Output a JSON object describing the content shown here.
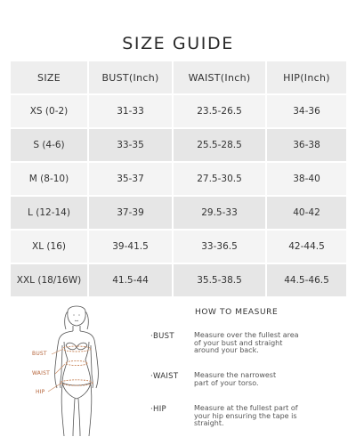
{
  "title": "SIZE GUIDE",
  "table": {
    "headers": [
      "SIZE",
      "BUST(Inch)",
      "WAIST(Inch)",
      "HIP(Inch)"
    ],
    "rows": [
      [
        "XS (0-2)",
        "31-33",
        "23.5-26.5",
        "34-36"
      ],
      [
        "S (4-6)",
        "33-35",
        "25.5-28.5",
        "36-38"
      ],
      [
        "M (8-10)",
        "35-37",
        "27.5-30.5",
        "38-40"
      ],
      [
        "L (12-14)",
        "37-39",
        "29.5-33",
        "40-42"
      ],
      [
        "XL (16)",
        "39-41.5",
        "33-36.5",
        "42-44.5"
      ],
      [
        "XXL (18/16W)",
        "41.5-44",
        "35.5-38.5",
        "44.5-46.5"
      ]
    ]
  },
  "figure": {
    "labels": [
      "BUST",
      "WAIST",
      "HIP"
    ],
    "accent": "#c8855a"
  },
  "how_to_measure": {
    "title": "HOW TO MEASURE",
    "items": [
      {
        "label": "BUST",
        "lines": [
          "Measure over the fullest area",
          "of your bust and straight",
          "around your back."
        ]
      },
      {
        "label": "WAIST",
        "lines": [
          "Measure the narrowest",
          "part of your torso."
        ]
      },
      {
        "label": "HIP",
        "lines": [
          "Measure at the fullest part of",
          "your hip ensuring the tape is",
          "straight."
        ]
      }
    ]
  }
}
